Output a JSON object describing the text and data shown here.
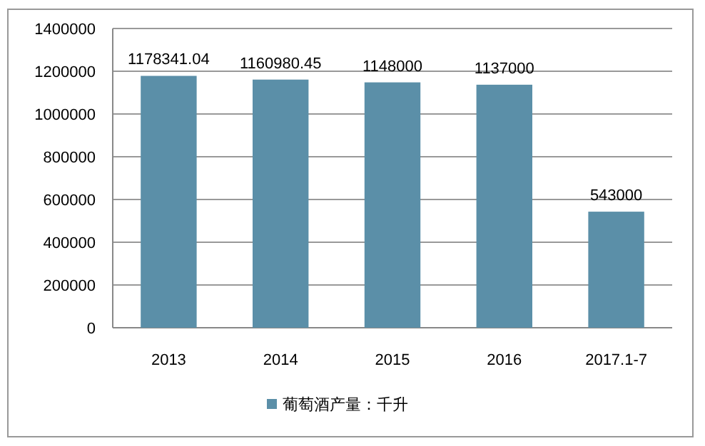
{
  "chart_data": {
    "type": "bar",
    "categories": [
      "2013",
      "2014",
      "2015",
      "2016",
      "2017.1-7"
    ],
    "series": [
      {
        "name": "葡萄酒产量：千升",
        "color": "#5b8fa8",
        "values": [
          1178341.04,
          1160980.45,
          1148000,
          1137000,
          543000
        ]
      }
    ],
    "value_labels": [
      "1178341.04",
      "1160980.45",
      "1148000",
      "1137000",
      "543000"
    ],
    "ylim": [
      0,
      1400000
    ],
    "yticks": [
      0,
      200000,
      400000,
      600000,
      800000,
      1000000,
      1200000,
      1400000
    ],
    "grid": "y",
    "legend": "bottom"
  }
}
